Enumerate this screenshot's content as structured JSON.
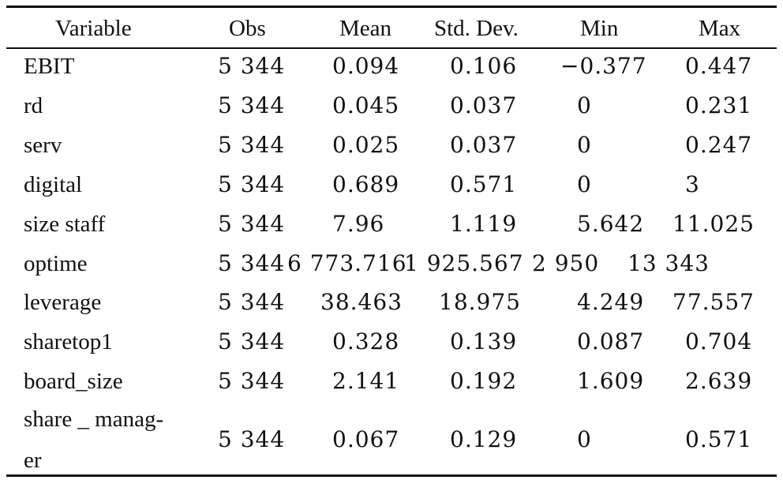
{
  "table": {
    "headers": [
      "Variable",
      "Obs",
      "Mean",
      "Std. Dev.",
      "Min",
      "Max"
    ],
    "rows": [
      {
        "variable": "EBIT",
        "obs": "5 344",
        "mean": "0.094",
        "sd": "0.106",
        "min": "−0.377",
        "max": "0.447"
      },
      {
        "variable": "rd",
        "obs": "5 344",
        "mean": "0.045",
        "sd": "0.037",
        "min": "0",
        "max": "0.231"
      },
      {
        "variable": "serv",
        "obs": "5 344",
        "mean": "0.025",
        "sd": "0.037",
        "min": "0",
        "max": "0.247"
      },
      {
        "variable": "digital",
        "obs": "5 344",
        "mean": "0.689",
        "sd": "0.571",
        "min": "0",
        "max": "3"
      },
      {
        "variable": "size staff",
        "obs": "5 344",
        "mean": "7.96",
        "sd": "1.119",
        "min": "5.642",
        "max": "11.025"
      },
      {
        "variable": "optime",
        "obs": "5 344",
        "mean": "6 773.716",
        "sd": "1 925.567",
        "min": "2 950",
        "max": "13 343"
      },
      {
        "variable": "leverage",
        "obs": "5 344",
        "mean": "38.463",
        "sd": "18.975",
        "min": "4.249",
        "max": "77.557"
      },
      {
        "variable": "sharetop1",
        "obs": "5 344",
        "mean": "0.328",
        "sd": "0.139",
        "min": "0.087",
        "max": "0.704"
      },
      {
        "variable": "board_size",
        "obs": "5 344",
        "mean": "2.141",
        "sd": "0.192",
        "min": "1.609",
        "max": "2.639"
      },
      {
        "variable_line1": "share _ manag-",
        "variable_line2": "er",
        "obs": "5 344",
        "mean": "0.067",
        "sd": "0.129",
        "min": "0",
        "max": "0.571"
      }
    ]
  }
}
